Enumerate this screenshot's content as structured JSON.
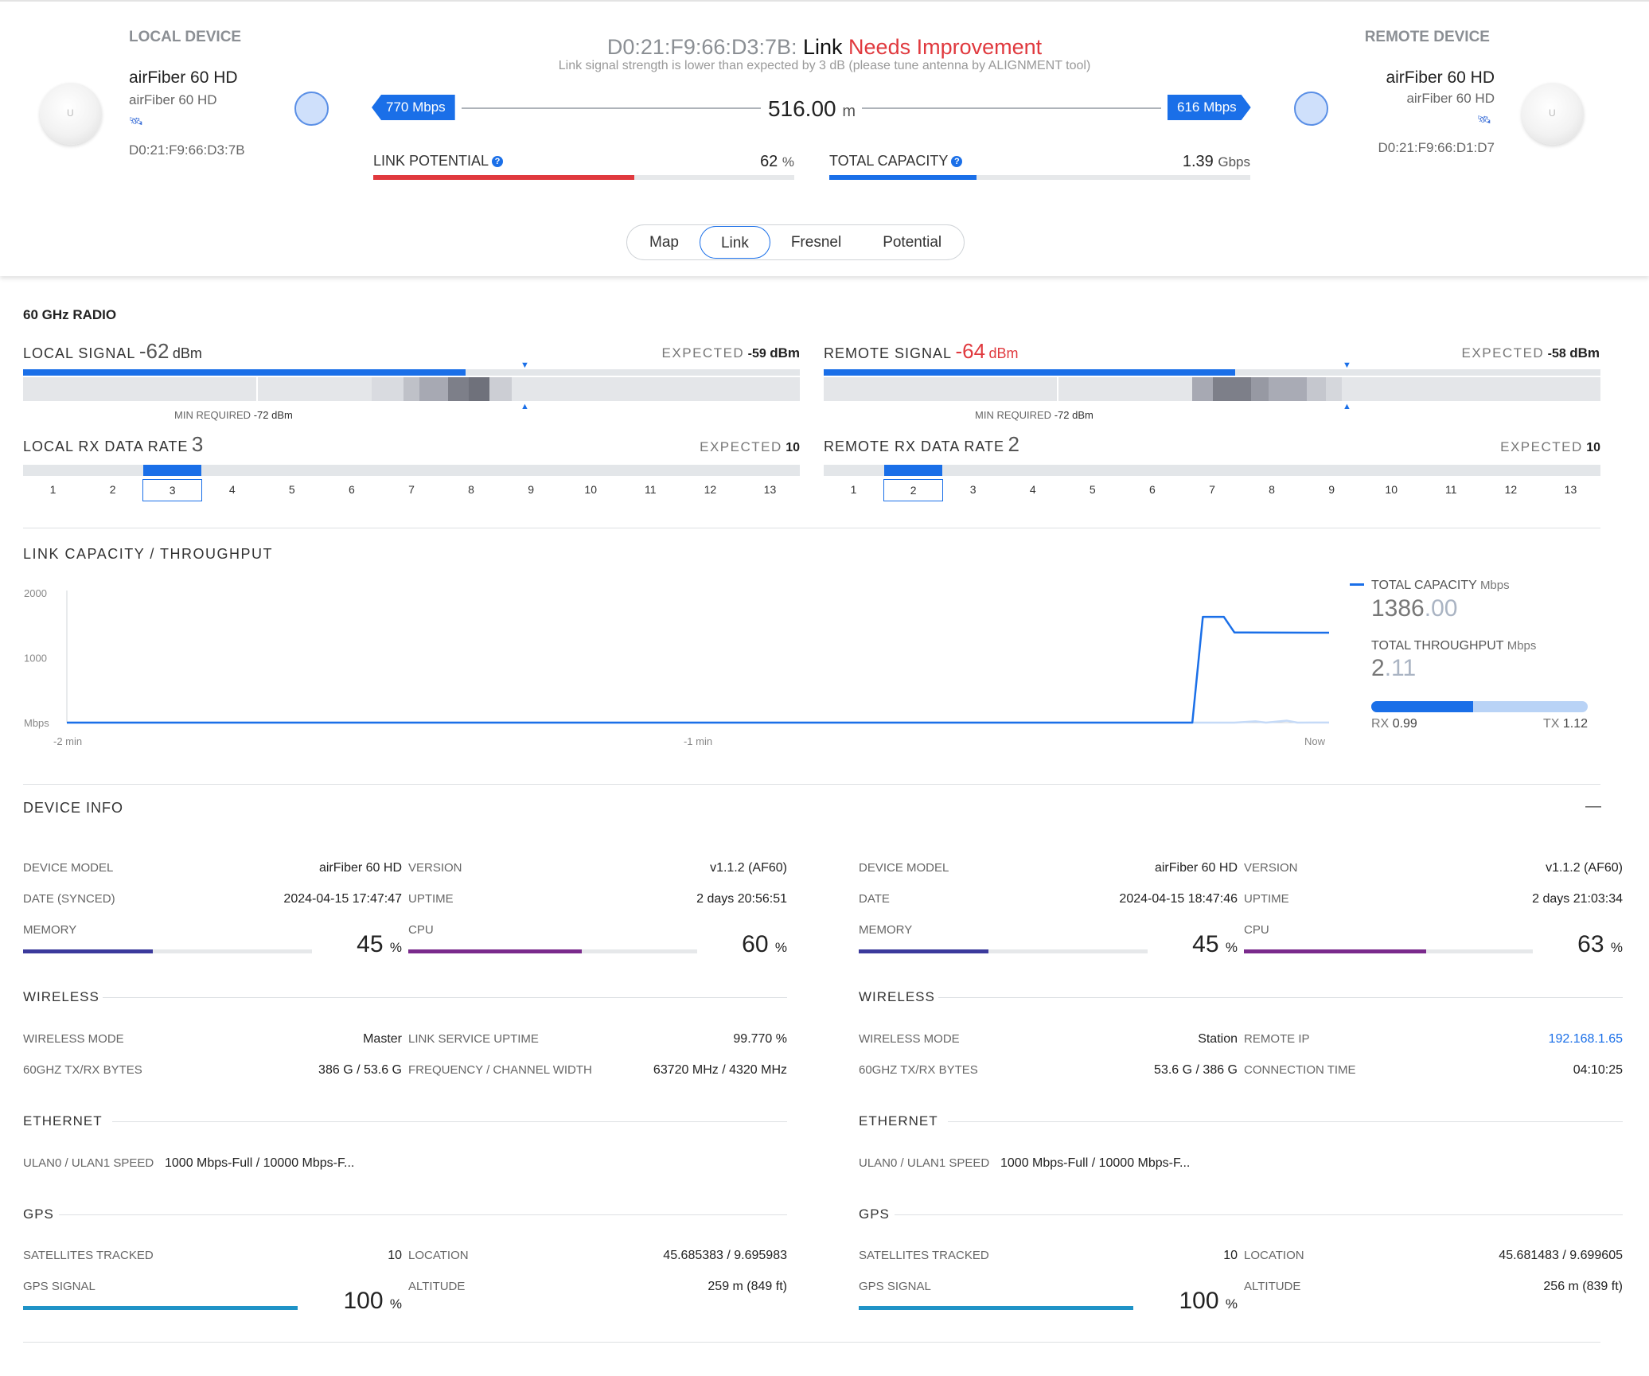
{
  "header": {
    "local": {
      "title": "LOCAL DEVICE",
      "name": "airFiber 60 HD",
      "model": "airFiber 60 HD",
      "mac": "D0:21:F9:66:D3:7B"
    },
    "remote": {
      "title": "REMOTE DEVICE",
      "name": "airFiber 60 HD",
      "model": "airFiber 60 HD",
      "mac": "D0:21:F9:66:D1:D7"
    },
    "link_mac": "D0:21:F9:66:D3:7B:",
    "link_word": "Link",
    "link_status": "Needs Improvement",
    "warning": "Link signal strength is lower than expected by 3 dB (please tune antenna by ALIGNMENT tool)",
    "rate_left": "770 Mbps",
    "rate_right": "616 Mbps",
    "distance": "516.00",
    "distance_unit": "m",
    "link_potential_label": "LINK POTENTIAL",
    "link_potential_value": "62",
    "link_potential_unit": "%",
    "link_potential_fraction": 0.62,
    "total_capacity_label": "TOTAL CAPACITY",
    "total_capacity_value": "1.39",
    "total_capacity_unit": "Gbps",
    "total_capacity_fraction": 0.35,
    "tabs": [
      "Map",
      "Link",
      "Fresnel",
      "Potential"
    ],
    "active_tab": "Link",
    "help_glyph": "?",
    "logo_glyph": "U",
    "colors": {
      "accent": "#1a6fe8",
      "error": "#e0393e"
    }
  },
  "radio": {
    "title": "60 GHz RADIO",
    "local_signal": {
      "label": "LOCAL SIGNAL",
      "value": "-62",
      "unit": "dBm",
      "expected_label": "EXPECTED",
      "expected_value": "-59",
      "expected_unit": "dBm",
      "min_required_label": "MIN REQUIRED",
      "min_required_value": "-72 dBm"
    },
    "remote_signal": {
      "label": "REMOTE SIGNAL",
      "value": "-64",
      "unit": "dBm",
      "expected_label": "EXPECTED",
      "expected_value": "-58",
      "expected_unit": "dBm",
      "min_required_label": "MIN REQUIRED",
      "min_required_value": "-72 dBm"
    },
    "local_rate": {
      "label": "LOCAL RX DATA RATE",
      "value": "3",
      "expected_label": "EXPECTED",
      "expected_value": "10",
      "selected": 3
    },
    "remote_rate": {
      "label": "REMOTE RX DATA RATE",
      "value": "2",
      "expected_label": "EXPECTED",
      "expected_value": "10",
      "selected": 2
    },
    "rate_scale": [
      "1",
      "2",
      "3",
      "4",
      "5",
      "6",
      "7",
      "8",
      "9",
      "10",
      "11",
      "12",
      "13"
    ]
  },
  "throughput": {
    "title": "LINK CAPACITY / THROUGHPUT",
    "total_capacity_label": "TOTAL CAPACITY",
    "total_capacity_unit": "Mbps",
    "total_capacity_int": "1386",
    "total_capacity_dec": ".00",
    "total_throughput_label": "TOTAL THROUGHPUT",
    "total_throughput_unit": "Mbps",
    "total_throughput_int": "2",
    "total_throughput_dec": ".11",
    "rx_label": "RX",
    "rx_value": "0.99",
    "tx_label": "TX",
    "tx_value": "1.12",
    "rx_fraction": 0.47
  },
  "chart_data": {
    "type": "line",
    "ylabel": "Mbps",
    "y_ticks": [
      "2000",
      "1000",
      "Mbps"
    ],
    "x_ticks": [
      "-2 min",
      "-1 min",
      "Now"
    ],
    "ylim": [
      0,
      2000
    ],
    "xlim": [
      -120,
      0
    ],
    "series": [
      {
        "name": "TOTAL CAPACITY",
        "color": "#1a6fe8",
        "x": [
          -120,
          -13,
          -12,
          -10,
          -9,
          -8,
          0
        ],
        "y": [
          0,
          0,
          1630,
          1630,
          1390,
          1390,
          1386
        ]
      },
      {
        "name": "TOTAL THROUGHPUT",
        "color": "#c5daf7",
        "x": [
          -120,
          -9,
          -7,
          -6,
          -4,
          -3,
          0
        ],
        "y": [
          0,
          0,
          20,
          0,
          30,
          0,
          2
        ]
      }
    ]
  },
  "device_info": {
    "title": "DEVICE INFO",
    "collapse_glyph": "—",
    "local": {
      "device_model_label": "DEVICE MODEL",
      "device_model": "airFiber 60 HD",
      "version_label": "VERSION",
      "version": "v1.1.2 (AF60)",
      "date_label": "DATE (SYNCED)",
      "date": "2024-04-15 17:47:47",
      "uptime_label": "UPTIME",
      "uptime": "2 days 20:56:51",
      "memory_label": "MEMORY",
      "memory": "45",
      "memory_unit": "%",
      "memory_fraction": 0.45,
      "cpu_label": "CPU",
      "cpu": "60",
      "cpu_unit": "%",
      "cpu_fraction": 0.6,
      "wireless_title": "WIRELESS",
      "wireless_mode_label": "WIRELESS MODE",
      "wireless_mode": "Master",
      "r1_label": "LINK SERVICE UPTIME",
      "r1_value": "99.770 %",
      "txrx_label": "60GHZ TX/RX BYTES",
      "txrx": "386 G / 53.6 G",
      "r2_label": "FREQUENCY / CHANNEL WIDTH",
      "r2_value": "63720 MHz / 4320 MHz",
      "ethernet_title": "ETHERNET",
      "ulan_label": "ULAN0 / ULAN1 SPEED",
      "ulan": "1000 Mbps-Full / 10000 Mbps-F...",
      "gps_title": "GPS",
      "sat_label": "SATELLITES TRACKED",
      "sat": "10",
      "loc_label": "LOCATION",
      "loc": "45.685383 / 9.695983",
      "gps_signal_label": "GPS SIGNAL",
      "gps_signal": "100",
      "gps_signal_unit": "%",
      "gps_fraction": 1.0,
      "alt_label": "ALTITUDE",
      "alt": "259 m (849 ft)"
    },
    "remote": {
      "device_model_label": "DEVICE MODEL",
      "device_model": "airFiber 60 HD",
      "version_label": "VERSION",
      "version": "v1.1.2 (AF60)",
      "date_label": "DATE",
      "date": "2024-04-15 18:47:46",
      "uptime_label": "UPTIME",
      "uptime": "2 days 21:03:34",
      "memory_label": "MEMORY",
      "memory": "45",
      "memory_unit": "%",
      "memory_fraction": 0.45,
      "cpu_label": "CPU",
      "cpu": "63",
      "cpu_unit": "%",
      "cpu_fraction": 0.63,
      "wireless_title": "WIRELESS",
      "wireless_mode_label": "WIRELESS MODE",
      "wireless_mode": "Station",
      "r1_label": "REMOTE IP",
      "r1_value": "192.168.1.65",
      "txrx_label": "60GHZ TX/RX BYTES",
      "txrx": "53.6 G / 386 G",
      "r2_label": "CONNECTION TIME",
      "r2_value": "04:10:25",
      "ethernet_title": "ETHERNET",
      "ulan_label": "ULAN0 / ULAN1 SPEED",
      "ulan": "1000 Mbps-Full / 10000 Mbps-F...",
      "gps_title": "GPS",
      "sat_label": "SATELLITES TRACKED",
      "sat": "10",
      "loc_label": "LOCATION",
      "loc": "45.681483 / 9.699605",
      "gps_signal_label": "GPS SIGNAL",
      "gps_signal": "100",
      "gps_signal_unit": "%",
      "gps_fraction": 1.0,
      "alt_label": "ALTITUDE",
      "alt": "256 m (839 ft)"
    }
  }
}
